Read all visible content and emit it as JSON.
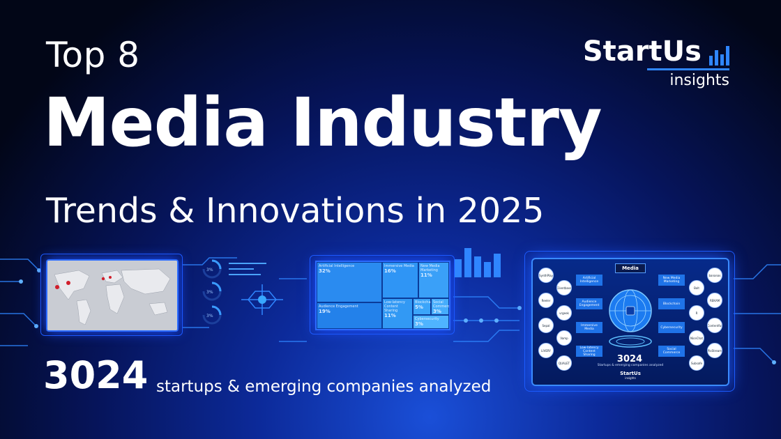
{
  "header": {
    "top_line": "Top 8",
    "main_title": "Media Industry",
    "sub_title": "Trends & Innovations in 2025"
  },
  "logo": {
    "brand": "StartUs",
    "sub": "insights",
    "bar_icon": "bar-chart-icon",
    "accent_color": "#2f86ff"
  },
  "footer": {
    "count": "3024",
    "text": "startups & emerging companies analyzed"
  },
  "treemap": {
    "cells": [
      {
        "label": "Artificial Intelligence",
        "value": "32%"
      },
      {
        "label": "Immersive Media",
        "value": "16%"
      },
      {
        "label": "New Media Marketing",
        "value": "11%"
      },
      {
        "label": "Audience Engagement",
        "value": "19%"
      },
      {
        "label": "Low-latency Content Sharing",
        "value": "11%"
      },
      {
        "label": "Blockchain",
        "value": "5%"
      },
      {
        "label": "Social Commerce",
        "value": "3%"
      },
      {
        "label": "Cybersecurity",
        "value": "3%"
      }
    ]
  },
  "gauges": {
    "values": [
      "3%",
      "3%",
      "3%"
    ]
  },
  "infographic": {
    "center_label": "Media",
    "trends_left": [
      "Artificial Intelligence",
      "Audience Engagement",
      "Immersive Media",
      "Low-latency Content Sharing"
    ],
    "trends_right": [
      "New Media Marketing",
      "Blockchain",
      "Cybersecurity",
      "Social Commerce"
    ],
    "logos_left": [
      "SynthPlay",
      "Clientbase",
      "Reeler",
      "vrgeek",
      "Sepal",
      "Vamp",
      "LIVERY",
      "QUALET"
    ],
    "logos_right": [
      "bananas",
      "Bolt",
      "REKAM",
      "R",
      "Contentful",
      "NiceChat",
      "PixStream",
      "Subsafe"
    ],
    "count": "3024",
    "sub": "Startups & emerging companies analyzed",
    "logo_brand": "StartUs",
    "logo_sub": "insights"
  }
}
